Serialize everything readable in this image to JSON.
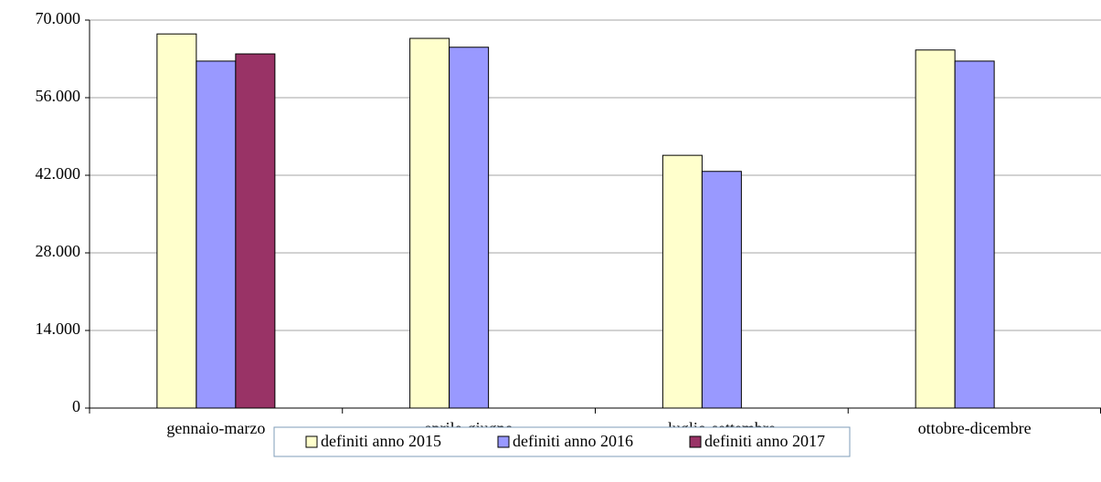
{
  "chart_data": {
    "type": "bar",
    "categories": [
      "gennaio-marzo",
      "aprile-giugno",
      "luglio-settembre",
      "ottobre-dicembre"
    ],
    "series": [
      {
        "name": "definiti anno 2015",
        "color": "#ffffcc",
        "values": [
          67500,
          66700,
          45600,
          64600
        ]
      },
      {
        "name": "definiti anno 2016",
        "color": "#9999ff",
        "values": [
          62600,
          65100,
          42700,
          62600
        ]
      },
      {
        "name": "definiti anno 2017",
        "color": "#993366",
        "values": [
          63900,
          null,
          null,
          null
        ]
      }
    ],
    "ylim": [
      0,
      70000
    ],
    "yticks": [
      0,
      {
        "value": 14000,
        "label": "14.000"
      },
      {
        "value": 28000,
        "label": "28.000"
      },
      {
        "value": 42000,
        "label": "42.000"
      },
      {
        "value": 56000,
        "label": "56.000"
      },
      {
        "value": 70000,
        "label": "70.000"
      }
    ],
    "grid": true,
    "legend": "bottom"
  }
}
